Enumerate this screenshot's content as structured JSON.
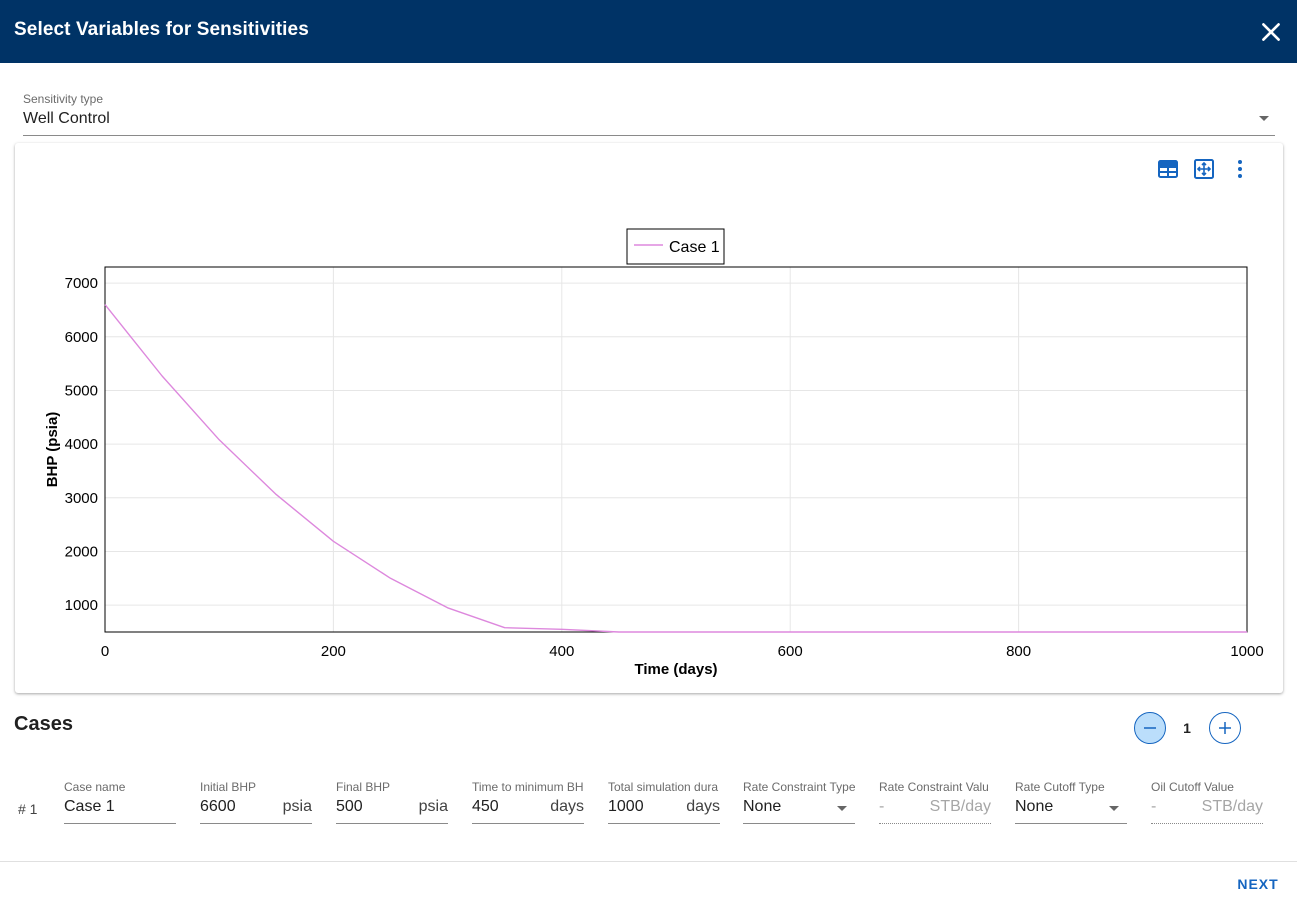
{
  "dialog": {
    "title": "Select Variables for Sensitivities"
  },
  "sensitivity_type": {
    "label": "Sensitivity type",
    "value": "Well Control"
  },
  "chart_toolbar": {
    "icons": [
      "table-icon",
      "fit-icon",
      "more-vert-icon"
    ]
  },
  "chart_data": {
    "type": "line",
    "xlabel": "Time (days)",
    "ylabel": "BHP (psia)",
    "xlim": [
      0,
      1000
    ],
    "ylim": [
      500,
      7300
    ],
    "x_ticks": [
      0,
      200,
      400,
      600,
      800,
      1000
    ],
    "y_ticks": [
      1000,
      2000,
      3000,
      4000,
      5000,
      6000,
      7000
    ],
    "grid": true,
    "legend_position": "top-center",
    "series": [
      {
        "name": "Case 1",
        "color": "#dd88dd",
        "x": [
          0,
          50,
          100,
          150,
          200,
          250,
          300,
          350,
          400,
          450,
          500,
          600,
          700,
          800,
          900,
          1000
        ],
        "y": [
          6600,
          5270,
          4080,
          3060,
          2190,
          1500,
          950,
          580,
          550,
          500,
          500,
          500,
          500,
          500,
          500,
          500
        ]
      }
    ]
  },
  "cases": {
    "title": "Cases",
    "count": "1",
    "rows": [
      {
        "number": "# 1",
        "case_name": {
          "label": "Case name",
          "value": "Case 1"
        },
        "initial_bhp": {
          "label": "Initial BHP",
          "value": "6600",
          "unit": "psia"
        },
        "final_bhp": {
          "label": "Final BHP",
          "value": "500",
          "unit": "psia"
        },
        "time_to_min_bhp": {
          "label": "Time to minimum BH",
          "value": "450",
          "unit": "days"
        },
        "total_sim_duration": {
          "label": "Total simulation dura",
          "value": "1000",
          "unit": "days"
        },
        "rate_constraint_type": {
          "label": "Rate Constraint Type",
          "value": "None"
        },
        "rate_constraint_value": {
          "label": "Rate Constraint Valu",
          "value": "-",
          "unit": "STB/day"
        },
        "rate_cutoff_type": {
          "label": "Rate Cutoff Type",
          "value": "None"
        },
        "oil_cutoff_value": {
          "label": "Oil Cutoff Value",
          "value": "-",
          "unit": "STB/day"
        }
      }
    ]
  },
  "footer": {
    "next_label": "NEXT"
  },
  "colors": {
    "header": "#003366",
    "accent": "#1565c0",
    "series": "#dd88dd"
  }
}
